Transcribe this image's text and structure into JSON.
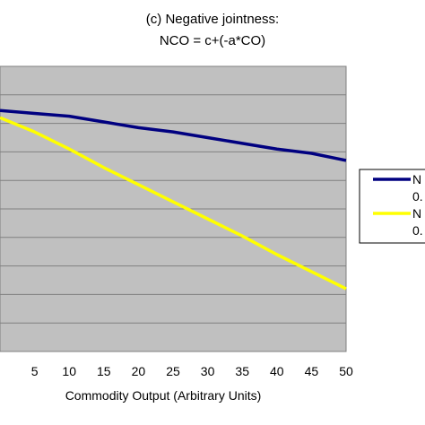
{
  "chart_data": {
    "type": "line",
    "title_line1": "(c) Negative jointness:",
    "title_line2": "NCO = c+(-a*CO)",
    "xlabel": "Commodity Output (Arbitrary Units)",
    "ylabel": "",
    "x": [
      0,
      5,
      10,
      15,
      20,
      25,
      30,
      35,
      40,
      45,
      50
    ],
    "x_tick_labels": [
      "5",
      "10",
      "15",
      "20",
      "25",
      "30",
      "35",
      "40",
      "45",
      "50"
    ],
    "xlim": [
      0,
      50
    ],
    "ylim": [
      0,
      10
    ],
    "grid": true,
    "plot_background": "#c0c0c0",
    "legend_position": "right",
    "series": [
      {
        "name": "N",
        "name_line2": "0.",
        "color": "#000080",
        "values": [
          8.45,
          8.35,
          8.25,
          8.05,
          7.85,
          7.7,
          7.5,
          7.3,
          7.1,
          6.95,
          6.7
        ]
      },
      {
        "name": "N",
        "name_line2": "0.",
        "color": "#ffff00",
        "values": [
          8.2,
          7.7,
          7.1,
          6.45,
          5.85,
          5.25,
          4.65,
          4.05,
          3.4,
          2.8,
          2.2
        ]
      }
    ]
  }
}
